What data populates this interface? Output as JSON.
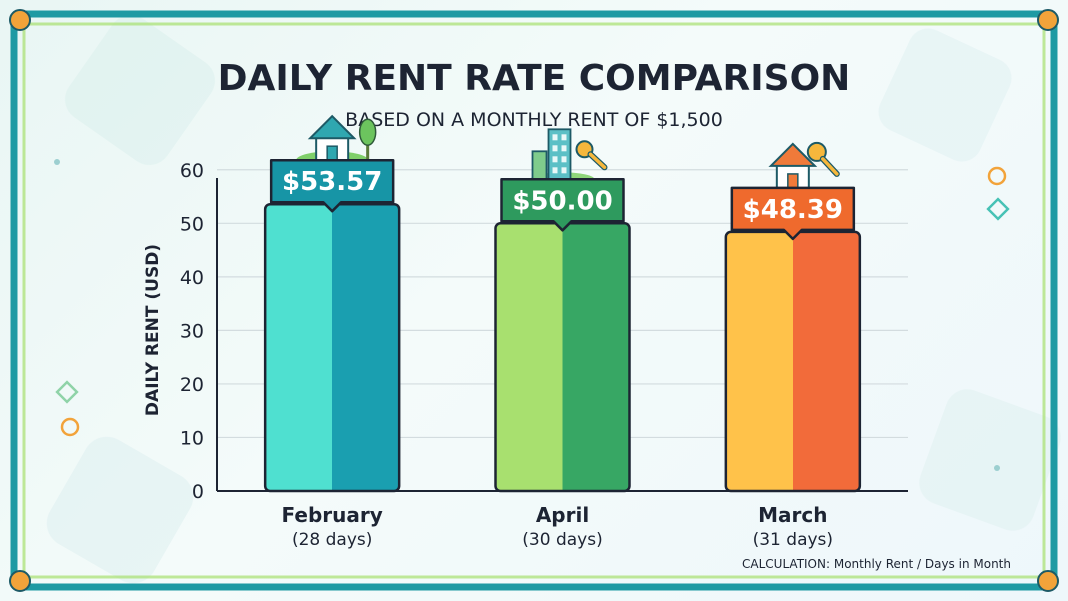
{
  "header": {
    "title": "DAILY RENT RATE COMPARISON",
    "subtitle": "BASED ON A MONTHLY RENT OF $1,500"
  },
  "footnote": "CALCULATION: Monthly Rent / Days in Month",
  "chart_data": {
    "type": "bar",
    "title": "DAILY RENT RATE COMPARISON",
    "subtitle": "BASED ON A MONTHLY RENT OF $1,500",
    "xlabel": "",
    "ylabel": "DAILY RENT (USD)",
    "ylim": [
      0,
      65
    ],
    "yticks": [
      0,
      10,
      20,
      30,
      40,
      50,
      60
    ],
    "grid": true,
    "categories": [
      "February",
      "April",
      "March"
    ],
    "category_sublabels": [
      "(28 days)",
      "(30 days)",
      "(31 days)"
    ],
    "values": [
      53.57,
      50.0,
      48.39
    ],
    "value_labels": [
      "$53.57",
      "$50.00",
      "$48.39"
    ],
    "bar_icons": [
      "house-tree-icon",
      "buildings-key-icon",
      "house-key-icon"
    ],
    "colors": {
      "bars": [
        {
          "light": "#4fe0d0",
          "dark": "#1a9fb0",
          "badge": "#1795a6"
        },
        {
          "light": "#a8e06f",
          "dark": "#37a764",
          "badge": "#2e9a5e"
        },
        {
          "light": "#ffc24a",
          "dark": "#f26b3a",
          "badge": "#ef6a2d"
        }
      ],
      "frame": "#1e9aa3",
      "frame_accent": "#a6df6d",
      "corner_dot": "#f2a33a",
      "text": "#1d2433"
    }
  }
}
